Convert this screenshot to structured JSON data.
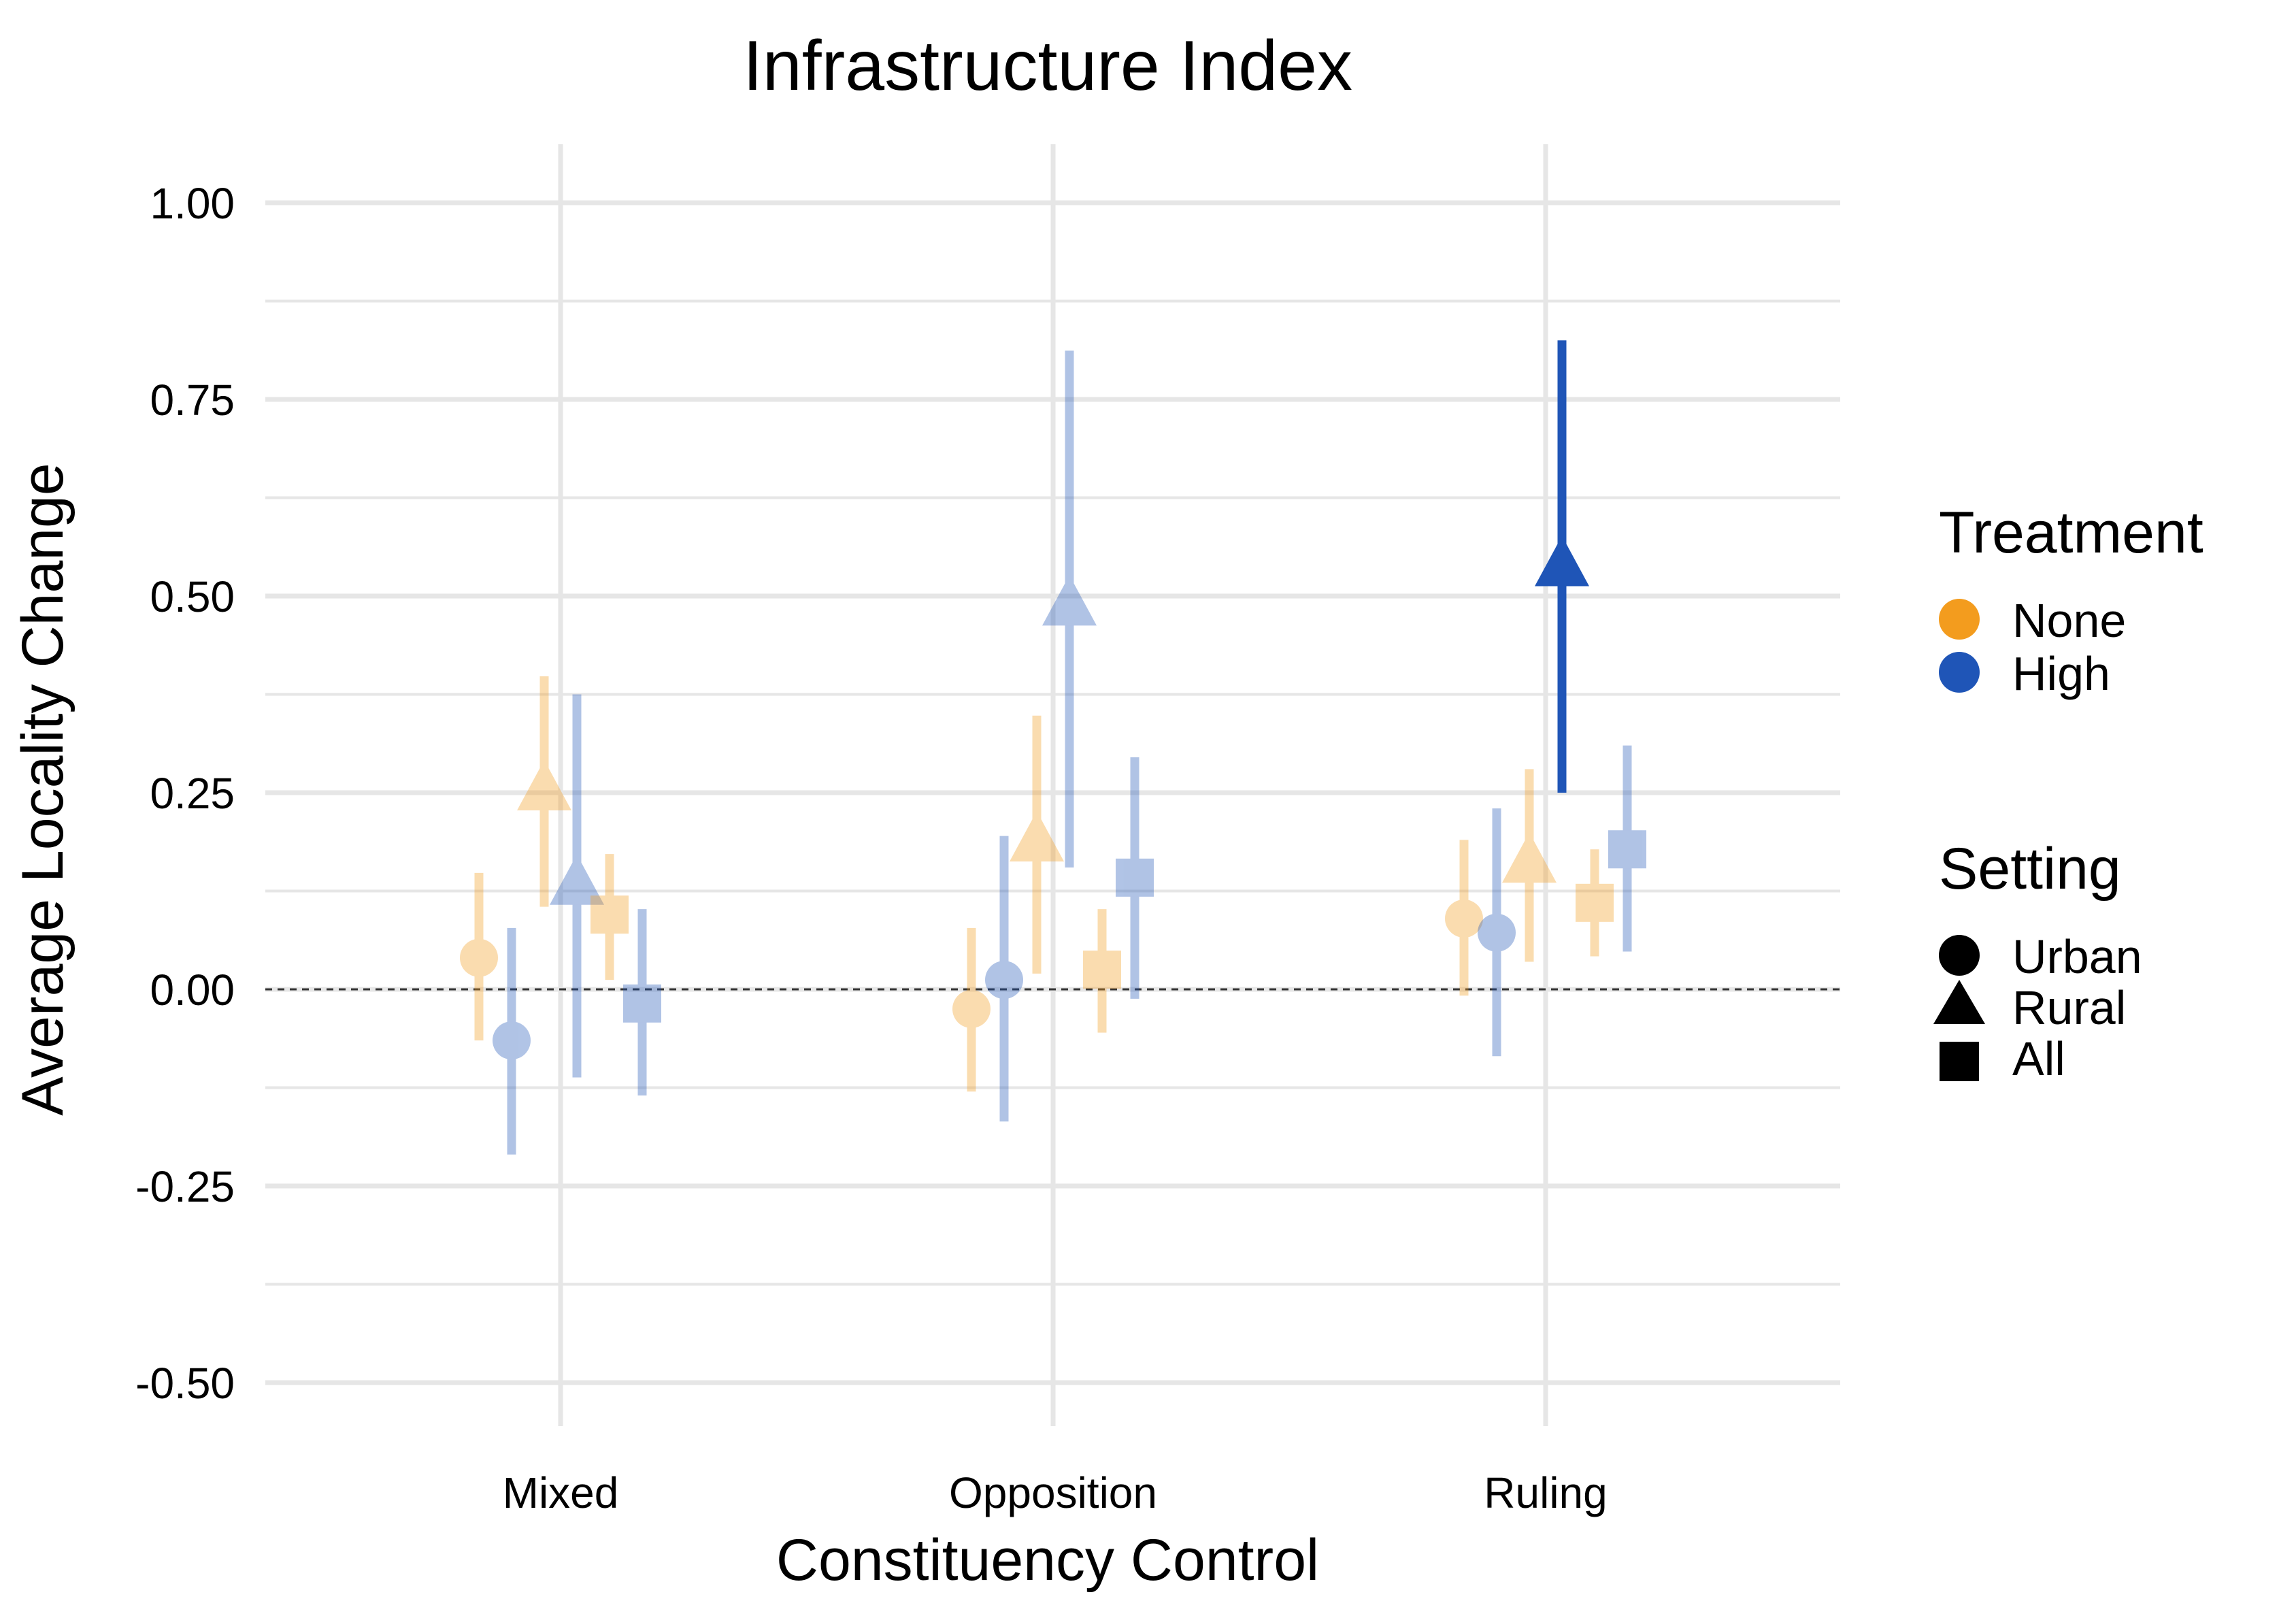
{
  "chart_data": {
    "type": "scatter",
    "title": "Infrastructure Index",
    "xlabel": "Constituency Control",
    "ylabel": "Average Locality Change",
    "categories": [
      "Mixed",
      "Opposition",
      "Ruling"
    ],
    "ylim": [
      -0.57,
      1.07
    ],
    "y_ticks": [
      "1.00",
      "0.75",
      "0.50",
      "0.25",
      "0.00",
      "-0.25",
      "-0.50"
    ],
    "y_tick_values": [
      1.0,
      0.75,
      0.5,
      0.25,
      0.0,
      -0.25,
      -0.5
    ],
    "reference_line": 0.0,
    "grid": true,
    "legend": {
      "placement": "right",
      "treatment": {
        "title": "Treatment",
        "items": [
          {
            "label": "None",
            "color": "#F39C1E"
          },
          {
            "label": "High",
            "color": "#1F55B7"
          }
        ]
      },
      "setting": {
        "title": "Setting",
        "items": [
          {
            "label": "Urban",
            "shape": "circle"
          },
          {
            "label": "Rural",
            "shape": "triangle"
          },
          {
            "label": "All",
            "shape": "square"
          }
        ]
      }
    },
    "colors": {
      "None": "#F39C1E",
      "High": "#1F55B7",
      "grid": "#E6E6E6"
    },
    "series": [
      {
        "category": "Mixed",
        "treatment": "None",
        "setting": "Urban",
        "estimate": 0.04,
        "lower": -0.065,
        "upper": 0.148,
        "highlight": false
      },
      {
        "category": "Mixed",
        "treatment": "High",
        "setting": "Urban",
        "estimate": -0.065,
        "lower": -0.21,
        "upper": 0.078,
        "highlight": false
      },
      {
        "category": "Mixed",
        "treatment": "None",
        "setting": "Rural",
        "estimate": 0.25,
        "lower": 0.105,
        "upper": 0.398,
        "highlight": false
      },
      {
        "category": "Mixed",
        "treatment": "High",
        "setting": "Rural",
        "estimate": 0.13,
        "lower": -0.112,
        "upper": 0.375,
        "highlight": false
      },
      {
        "category": "Mixed",
        "treatment": "None",
        "setting": "All",
        "estimate": 0.095,
        "lower": 0.012,
        "upper": 0.172,
        "highlight": false
      },
      {
        "category": "Mixed",
        "treatment": "High",
        "setting": "All",
        "estimate": -0.018,
        "lower": -0.135,
        "upper": 0.102,
        "highlight": false
      },
      {
        "category": "Opposition",
        "treatment": "None",
        "setting": "Urban",
        "estimate": -0.025,
        "lower": -0.13,
        "upper": 0.078,
        "highlight": false
      },
      {
        "category": "Opposition",
        "treatment": "High",
        "setting": "Urban",
        "estimate": 0.012,
        "lower": -0.168,
        "upper": 0.195,
        "highlight": false
      },
      {
        "category": "Opposition",
        "treatment": "None",
        "setting": "Rural",
        "estimate": 0.185,
        "lower": 0.02,
        "upper": 0.348,
        "highlight": false
      },
      {
        "category": "Opposition",
        "treatment": "High",
        "setting": "Rural",
        "estimate": 0.485,
        "lower": 0.155,
        "upper": 0.812,
        "highlight": false
      },
      {
        "category": "Opposition",
        "treatment": "None",
        "setting": "All",
        "estimate": 0.025,
        "lower": -0.055,
        "upper": 0.102,
        "highlight": false
      },
      {
        "category": "Opposition",
        "treatment": "High",
        "setting": "All",
        "estimate": 0.142,
        "lower": -0.012,
        "upper": 0.295,
        "highlight": false
      },
      {
        "category": "Ruling",
        "treatment": "None",
        "setting": "Urban",
        "estimate": 0.09,
        "lower": -0.008,
        "upper": 0.19,
        "highlight": false
      },
      {
        "category": "Ruling",
        "treatment": "High",
        "setting": "Urban",
        "estimate": 0.072,
        "lower": -0.085,
        "upper": 0.23,
        "highlight": false
      },
      {
        "category": "Ruling",
        "treatment": "None",
        "setting": "Rural",
        "estimate": 0.158,
        "lower": 0.035,
        "upper": 0.28,
        "highlight": false
      },
      {
        "category": "Ruling",
        "treatment": "High",
        "setting": "Rural",
        "estimate": 0.535,
        "lower": 0.25,
        "upper": 0.825,
        "highlight": true
      },
      {
        "category": "Ruling",
        "treatment": "None",
        "setting": "All",
        "estimate": 0.11,
        "lower": 0.042,
        "upper": 0.178,
        "highlight": false
      },
      {
        "category": "Ruling",
        "treatment": "High",
        "setting": "All",
        "estimate": 0.178,
        "lower": 0.048,
        "upper": 0.31,
        "highlight": false
      }
    ]
  }
}
